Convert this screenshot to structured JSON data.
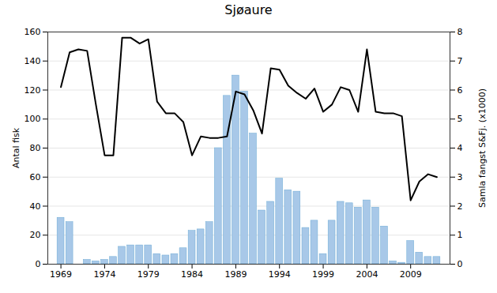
{
  "chart_data": {
    "type": "bar",
    "title": "Sjøaure",
    "ylabel": "Antal fisk",
    "y2label": "Samla fangst S&Fj. (x1000)",
    "x": [
      1969,
      1970,
      1971,
      1972,
      1973,
      1974,
      1975,
      1976,
      1977,
      1978,
      1979,
      1980,
      1981,
      1982,
      1983,
      1984,
      1985,
      1986,
      1987,
      1988,
      1989,
      1990,
      1991,
      1992,
      1993,
      1994,
      1995,
      1996,
      1997,
      1998,
      1999,
      2000,
      2001,
      2002,
      2003,
      2004,
      2005,
      2006,
      2007,
      2008,
      2009,
      2010,
      2011,
      2012
    ],
    "series": [
      {
        "type": "bar",
        "color": "#a8c8e8",
        "values": [
          32,
          29,
          0,
          3,
          2,
          3,
          5,
          12,
          13,
          13,
          13,
          7,
          6,
          7,
          11,
          23,
          24,
          29,
          80,
          116,
          130,
          119,
          90,
          37,
          43,
          59,
          51,
          50,
          25,
          30,
          7,
          30,
          43,
          42,
          39,
          44,
          39,
          26,
          2,
          1,
          16,
          8,
          5,
          5
        ]
      },
      {
        "type": "line",
        "color": "#000000",
        "axis": "y2",
        "values": [
          6.1,
          7.3,
          7.4,
          7.35,
          5.5,
          3.75,
          3.75,
          7.8,
          7.8,
          7.6,
          7.75,
          5.6,
          5.2,
          5.2,
          4.9,
          3.75,
          4.4,
          4.35,
          4.35,
          4.4,
          5.95,
          5.85,
          5.3,
          4.5,
          6.75,
          6.7,
          6.15,
          5.9,
          5.7,
          6.05,
          5.25,
          5.5,
          6.1,
          6.0,
          5.25,
          7.4,
          5.25,
          5.2,
          5.2,
          5.1,
          2.2,
          2.85,
          3.1,
          3.0
        ]
      }
    ],
    "xlim": [
      1967.5,
      2013.5
    ],
    "xticks": [
      1969,
      1974,
      1979,
      1984,
      1989,
      1994,
      1999,
      2004,
      2009
    ],
    "ylim": [
      0,
      160
    ],
    "yticks": [
      0,
      20,
      40,
      60,
      80,
      100,
      120,
      140,
      160
    ],
    "y2lim": [
      0,
      8
    ],
    "y2ticks": [
      0,
      1,
      2,
      3,
      4,
      5,
      6,
      7,
      8
    ],
    "grid": true
  }
}
